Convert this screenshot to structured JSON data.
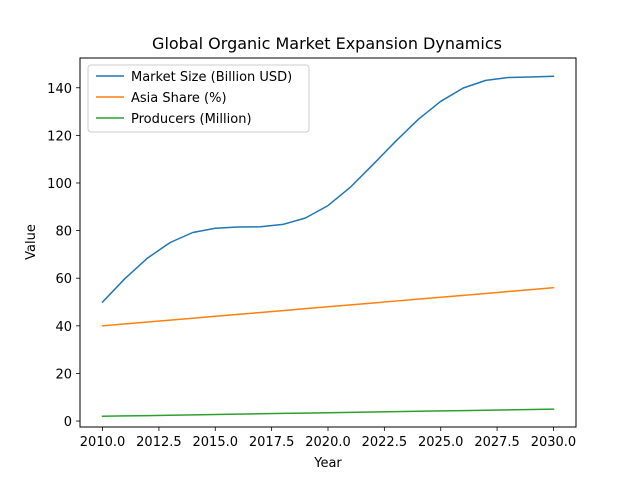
{
  "chart_data": {
    "type": "line",
    "title": "Global Organic Market Expansion Dynamics",
    "xlabel": "Year",
    "ylabel": "Value",
    "xlim": [
      2009.0,
      2031.0
    ],
    "ylim": [
      -2.5,
      152.5
    ],
    "xticks": [
      2010.0,
      2012.5,
      2015.0,
      2017.5,
      2020.0,
      2022.5,
      2025.0,
      2027.5,
      2030.0
    ],
    "xtick_labels": [
      "2010.0",
      "2012.5",
      "2015.0",
      "2017.5",
      "2020.0",
      "2022.5",
      "2025.0",
      "2027.5",
      "2030.0"
    ],
    "yticks": [
      0,
      20,
      40,
      60,
      80,
      100,
      120,
      140
    ],
    "ytick_labels": [
      "0",
      "20",
      "40",
      "60",
      "80",
      "100",
      "120",
      "140"
    ],
    "grid": false,
    "legend_position": "top-left",
    "x": [
      2010,
      2011,
      2012,
      2013,
      2014,
      2015,
      2016,
      2017,
      2018,
      2019,
      2020,
      2021,
      2022,
      2023,
      2024,
      2025,
      2026,
      2027,
      2028,
      2029,
      2030
    ],
    "series": [
      {
        "name": "Market Size (Billion USD)",
        "color": "#1f77b4",
        "values": [
          50.0,
          59.9,
          68.5,
          75.0,
          79.2,
          81.0,
          81.5,
          81.6,
          82.6,
          85.3,
          90.5,
          98.3,
          107.8,
          117.5,
          126.7,
          134.3,
          139.9,
          143.1,
          144.3,
          144.5,
          144.8
        ]
      },
      {
        "name": "Asia Share (%)",
        "color": "#ff7f0e",
        "values": [
          40.0,
          40.8,
          41.6,
          42.4,
          43.2,
          44.0,
          44.8,
          45.6,
          46.4,
          47.2,
          48.0,
          48.8,
          49.6,
          50.4,
          51.2,
          52.0,
          52.8,
          53.6,
          54.4,
          55.2,
          56.0
        ]
      },
      {
        "name": "Producers (Million)",
        "color": "#2ca02c",
        "values": [
          2.0,
          2.15,
          2.3,
          2.45,
          2.6,
          2.75,
          2.9,
          3.05,
          3.2,
          3.35,
          3.5,
          3.65,
          3.8,
          3.95,
          4.1,
          4.25,
          4.4,
          4.55,
          4.7,
          4.85,
          5.0
        ]
      }
    ]
  }
}
